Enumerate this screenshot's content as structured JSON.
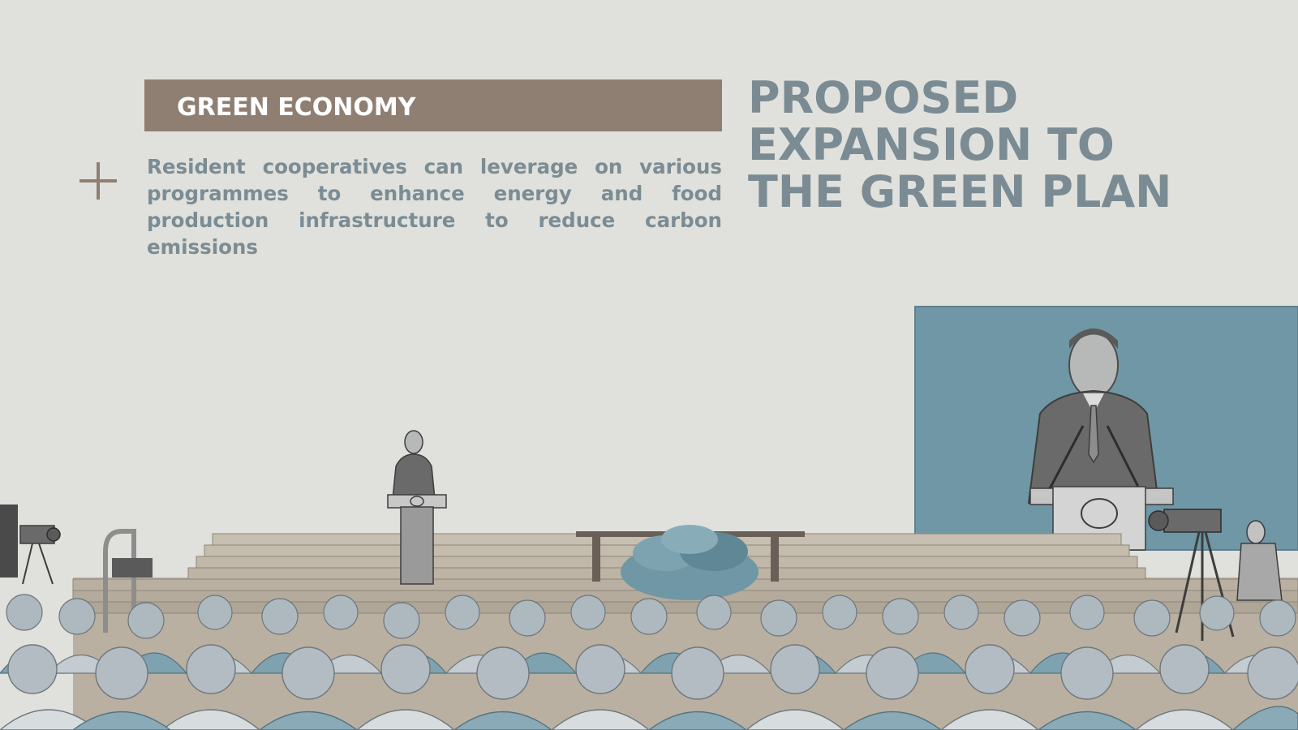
{
  "slide": {
    "section_label": "GREEN ECONOMY",
    "body_text": "Resident cooperatives can leverage on various programmes to enhance energy and food production infrastructure to reduce carbon emissions",
    "headline_lines": [
      "PROPOSED",
      "EXPANSION TO",
      "THE GREEN PLAN"
    ]
  },
  "colors": {
    "background": "#e0e1dc",
    "band": "#8f7f72",
    "headline": "#7a8b93",
    "body": "#7b8c94",
    "screen": "#6f97a6"
  },
  "illustration": {
    "subject": "speaker-at-podium-with-audience",
    "icons": [
      "plus-icon",
      "podium-icon",
      "camera-icon",
      "video-screen-icon"
    ]
  }
}
